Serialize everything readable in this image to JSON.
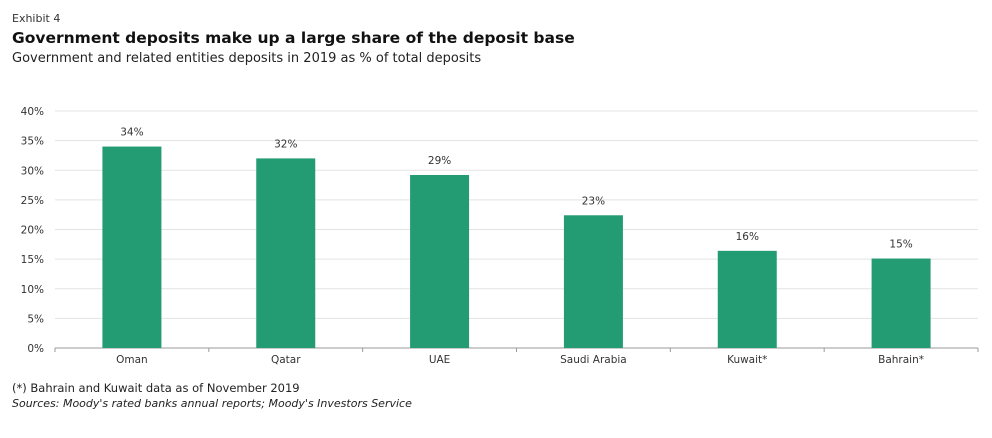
{
  "header": {
    "exhibit": "Exhibit 4",
    "title": "Government deposits make up a large share of the deposit base",
    "subtitle": "Government and related entities deposits in 2019 as % of total deposits"
  },
  "footer": {
    "note": "(*) Bahrain and Kuwait data as of November 2019",
    "source": "Sources: Moody's rated banks annual reports; Moody's Investors Service"
  },
  "colors": {
    "bar": "#239b73",
    "grid": "#e3e3e3",
    "axis": "#9a9a9a"
  },
  "chart_data": {
    "type": "bar",
    "categories": [
      "Oman",
      "Qatar",
      "UAE",
      "Saudi Arabia",
      "Kuwait*",
      "Bahrain*"
    ],
    "values": [
      34,
      32,
      29,
      23,
      16,
      15
    ],
    "data_labels": [
      "34%",
      "32%",
      "29%",
      "23%",
      "16%",
      "15%"
    ],
    "bar_values_estimated": [
      34,
      32,
      29.2,
      22.4,
      16.4,
      15.1
    ],
    "ylim": [
      0,
      40
    ],
    "yticks": [
      0,
      5,
      10,
      15,
      20,
      25,
      30,
      35,
      40
    ],
    "ytick_labels": [
      "0%",
      "5%",
      "10%",
      "15%",
      "20%",
      "25%",
      "30%",
      "35%",
      "40%"
    ],
    "grid": true,
    "legend": "none"
  }
}
